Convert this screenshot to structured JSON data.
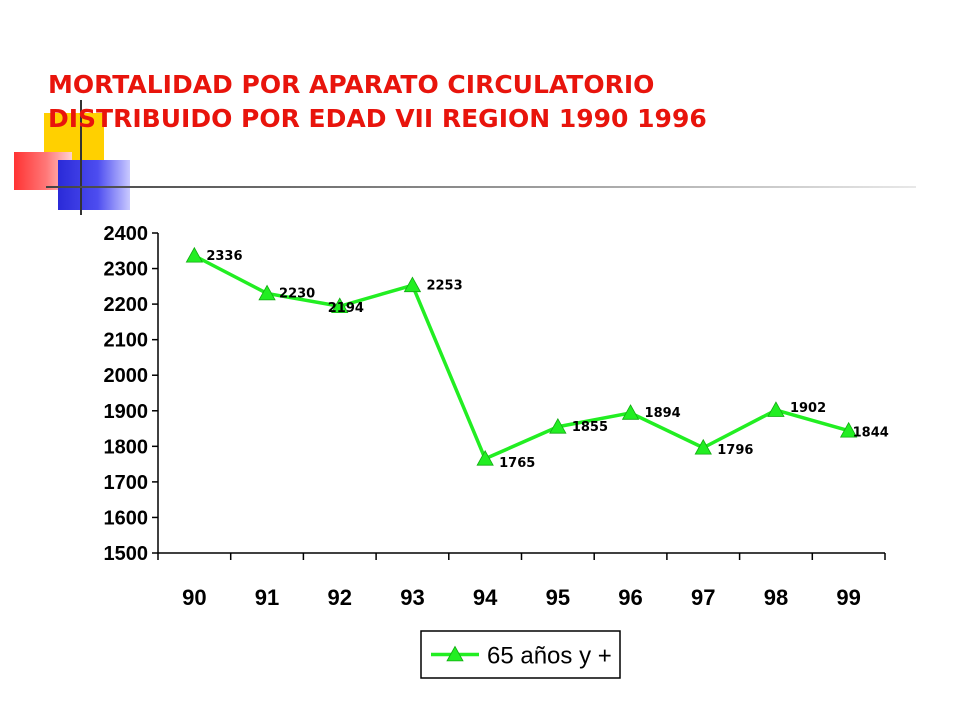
{
  "slide": {
    "title_line1": "MORTALIDAD POR APARATO CIRCULATORIO",
    "title_line2": "DISTRIBUIDO POR EDAD VII REGION 1990 1996",
    "title_color": "#e8140c"
  },
  "chart_data": {
    "type": "line",
    "title": "MORTALIDAD POR APARATO CIRCULATORIO DISTRIBUIDO POR EDAD VII REGION 1990 1996",
    "xlabel": "",
    "ylabel": "",
    "categories": [
      "90",
      "91",
      "92",
      "93",
      "94",
      "95",
      "96",
      "97",
      "98",
      "99"
    ],
    "ylim": [
      1500,
      2400
    ],
    "yticks": [
      1500,
      1600,
      1700,
      1800,
      1900,
      2000,
      2100,
      2200,
      2300,
      2400
    ],
    "grid": false,
    "legend_position": "bottom",
    "series": [
      {
        "name": "65 años y +",
        "values": [
          2336,
          2230,
          2194,
          2253,
          1765,
          1855,
          1894,
          1796,
          1902,
          1844
        ],
        "color": "#22ee22",
        "marker": "triangle"
      }
    ]
  }
}
